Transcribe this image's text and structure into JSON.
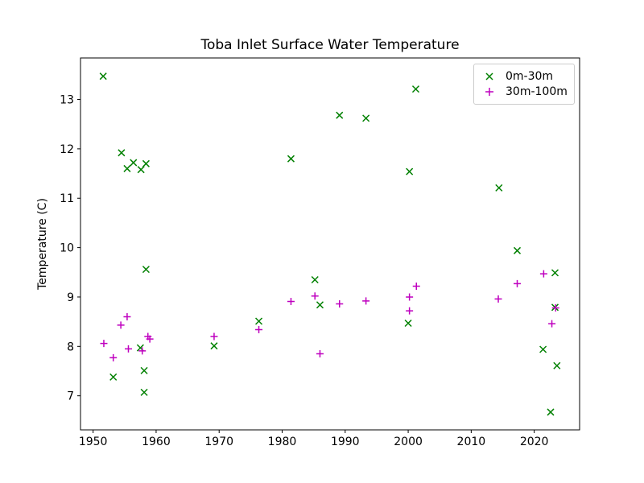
{
  "chart_data": {
    "type": "scatter",
    "title": "Toba Inlet Surface Water Temperature",
    "xlabel": "",
    "ylabel": "Temperature (C)",
    "xlim": [
      1948.0,
      2027.2
    ],
    "ylim": [
      6.31,
      13.84
    ],
    "xticks": [
      1950,
      1960,
      1970,
      1980,
      1990,
      2000,
      2010,
      2020
    ],
    "yticks": [
      7,
      8,
      9,
      10,
      11,
      12,
      13
    ],
    "grid": false,
    "legend_position": "upper right",
    "axis_color": "#000000",
    "legend_border_color": "#cccccc",
    "series": [
      {
        "name": "0m-30m",
        "marker": "x",
        "color": "#008000",
        "points": [
          [
            1951.6,
            13.47
          ],
          [
            1953.2,
            7.38
          ],
          [
            1954.5,
            11.92
          ],
          [
            1955.4,
            11.6
          ],
          [
            1956.4,
            11.72
          ],
          [
            1957.5,
            7.97
          ],
          [
            1957.6,
            11.58
          ],
          [
            1958.1,
            7.51
          ],
          [
            1958.1,
            7.07
          ],
          [
            1958.4,
            11.7
          ],
          [
            1958.4,
            9.56
          ],
          [
            1969.2,
            8.01
          ],
          [
            1976.3,
            8.51
          ],
          [
            1981.4,
            11.8
          ],
          [
            1985.2,
            9.35
          ],
          [
            1986.0,
            8.84
          ],
          [
            1989.1,
            12.68
          ],
          [
            1993.3,
            12.62
          ],
          [
            2000.0,
            8.47
          ],
          [
            2000.2,
            11.54
          ],
          [
            2001.2,
            13.21
          ],
          [
            2014.4,
            11.21
          ],
          [
            2017.3,
            9.94
          ],
          [
            2021.4,
            7.94
          ],
          [
            2022.6,
            6.67
          ],
          [
            2023.3,
            9.49
          ],
          [
            2023.3,
            8.79
          ],
          [
            2023.6,
            7.61
          ]
        ]
      },
      {
        "name": "30m-100m",
        "marker": "+",
        "color": "#bf00bf",
        "points": [
          [
            1951.7,
            8.06
          ],
          [
            1953.2,
            7.77
          ],
          [
            1954.4,
            8.43
          ],
          [
            1955.4,
            8.6
          ],
          [
            1955.6,
            7.95
          ],
          [
            1957.8,
            7.91
          ],
          [
            1958.7,
            8.2
          ],
          [
            1959.0,
            8.15
          ],
          [
            1969.2,
            8.2
          ],
          [
            1976.3,
            8.34
          ],
          [
            1981.4,
            8.91
          ],
          [
            1985.2,
            9.02
          ],
          [
            1986.0,
            7.85
          ],
          [
            1989.1,
            8.86
          ],
          [
            1993.3,
            8.92
          ],
          [
            2000.2,
            9.0
          ],
          [
            2000.2,
            8.72
          ],
          [
            2001.3,
            9.22
          ],
          [
            2014.3,
            8.96
          ],
          [
            2017.3,
            9.27
          ],
          [
            2021.5,
            9.47
          ],
          [
            2022.8,
            8.46
          ],
          [
            2023.4,
            8.78
          ]
        ]
      }
    ]
  }
}
